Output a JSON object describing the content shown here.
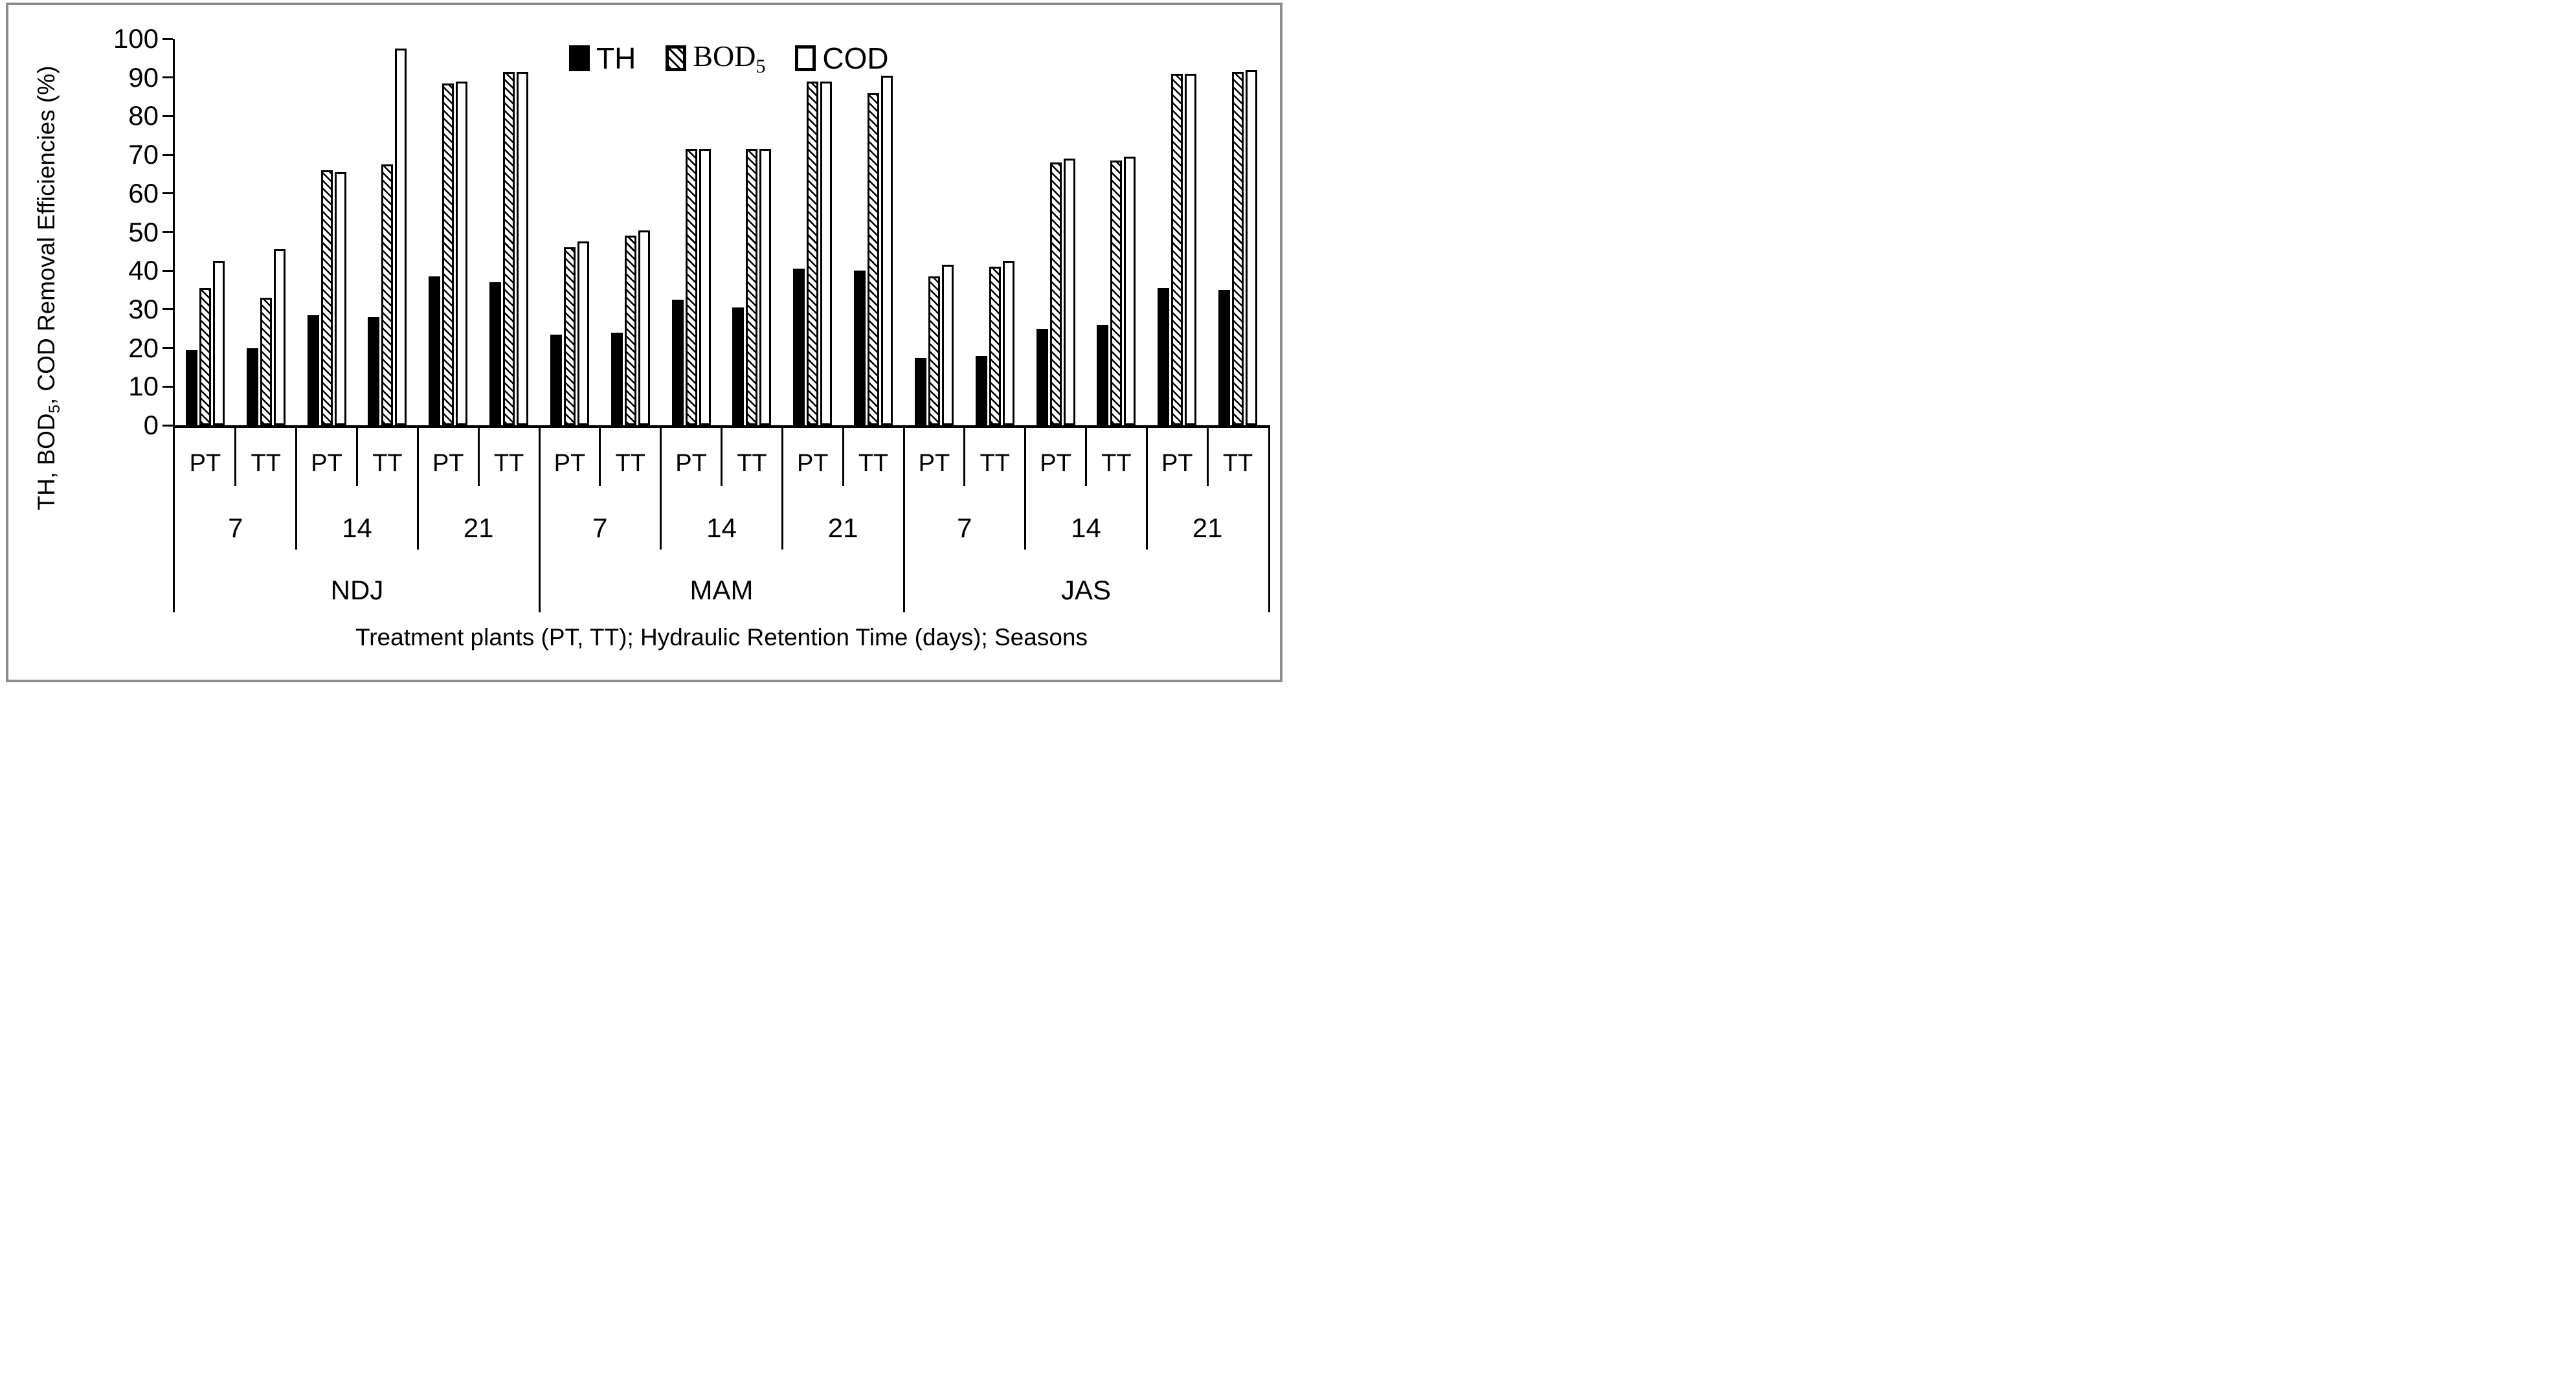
{
  "colors": {
    "bar": "#000000",
    "background": "#ffffff",
    "frame_border": "#8c8c8c"
  },
  "chart_data": {
    "type": "bar",
    "title": "",
    "xlabel": "Treatment plants (PT, TT); Hydraulic Retention Time (days); Seasons",
    "ylabel_parts": [
      {
        "text": "TH, BOD"
      },
      {
        "sub": "5"
      },
      {
        "text": ", COD Removal Efficiencies (%)"
      }
    ],
    "ylim": [
      0,
      100
    ],
    "yticks": [
      0,
      10,
      20,
      30,
      40,
      50,
      60,
      70,
      80,
      90,
      100
    ],
    "grid": false,
    "legend_position": "top-center",
    "legend_entries": [
      {
        "label": "TH",
        "sub": "",
        "pattern": "solid",
        "font": "sans"
      },
      {
        "label": "BOD",
        "sub": "5",
        "pattern": "diagonal-hatch",
        "font": "serif"
      },
      {
        "label": "COD",
        "sub": "",
        "pattern": "open",
        "font": "sans"
      }
    ],
    "series_order": [
      "TH",
      "BOD5",
      "COD"
    ],
    "seasons": [
      {
        "label": "NDJ",
        "groups": [
          {
            "hrt": "7",
            "plants": [
              {
                "plant": "PT",
                "values": {
                  "TH": 19.5,
                  "BOD5": 35.5,
                  "COD": 42.5
                }
              },
              {
                "plant": "TT",
                "values": {
                  "TH": 20,
                  "BOD5": 33,
                  "COD": 45.5
                }
              }
            ]
          },
          {
            "hrt": "14",
            "plants": [
              {
                "plant": "PT",
                "values": {
                  "TH": 28.5,
                  "BOD5": 66,
                  "COD": 65.5
                }
              },
              {
                "plant": "TT",
                "values": {
                  "TH": 28,
                  "BOD5": 67.5,
                  "COD": 97.5
                }
              }
            ]
          },
          {
            "hrt": "21",
            "plants": [
              {
                "plant": "PT",
                "values": {
                  "TH": 38.5,
                  "BOD5": 88.5,
                  "COD": 89
                }
              },
              {
                "plant": "TT",
                "values": {
                  "TH": 37,
                  "BOD5": 91.5,
                  "COD": 91.5
                }
              }
            ]
          }
        ]
      },
      {
        "label": "MAM",
        "groups": [
          {
            "hrt": "7",
            "plants": [
              {
                "plant": "PT",
                "values": {
                  "TH": 23.5,
                  "BOD5": 46,
                  "COD": 47.5
                }
              },
              {
                "plant": "TT",
                "values": {
                  "TH": 24,
                  "BOD5": 49,
                  "COD": 50.5
                }
              }
            ]
          },
          {
            "hrt": "14",
            "plants": [
              {
                "plant": "PT",
                "values": {
                  "TH": 32.5,
                  "BOD5": 71.5,
                  "COD": 71.5
                }
              },
              {
                "plant": "TT",
                "values": {
                  "TH": 30.5,
                  "BOD5": 71.5,
                  "COD": 71.5
                }
              }
            ]
          },
          {
            "hrt": "21",
            "plants": [
              {
                "plant": "PT",
                "values": {
                  "TH": 40.5,
                  "BOD5": 89,
                  "COD": 89
                }
              },
              {
                "plant": "TT",
                "values": {
                  "TH": 40,
                  "BOD5": 86,
                  "COD": 90.5
                }
              }
            ]
          }
        ]
      },
      {
        "label": "JAS",
        "groups": [
          {
            "hrt": "7",
            "plants": [
              {
                "plant": "PT",
                "values": {
                  "TH": 17.5,
                  "BOD5": 38.5,
                  "COD": 41.5
                }
              },
              {
                "plant": "TT",
                "values": {
                  "TH": 18,
                  "BOD5": 41,
                  "COD": 42.5
                }
              }
            ]
          },
          {
            "hrt": "14",
            "plants": [
              {
                "plant": "PT",
                "values": {
                  "TH": 25,
                  "BOD5": 68,
                  "COD": 69
                }
              },
              {
                "plant": "TT",
                "values": {
                  "TH": 26,
                  "BOD5": 68.5,
                  "COD": 69.5
                }
              }
            ]
          },
          {
            "hrt": "21",
            "plants": [
              {
                "plant": "PT",
                "values": {
                  "TH": 35.5,
                  "BOD5": 91,
                  "COD": 91
                }
              },
              {
                "plant": "TT",
                "values": {
                  "TH": 35,
                  "BOD5": 91.5,
                  "COD": 92
                }
              }
            ]
          }
        ]
      }
    ]
  }
}
